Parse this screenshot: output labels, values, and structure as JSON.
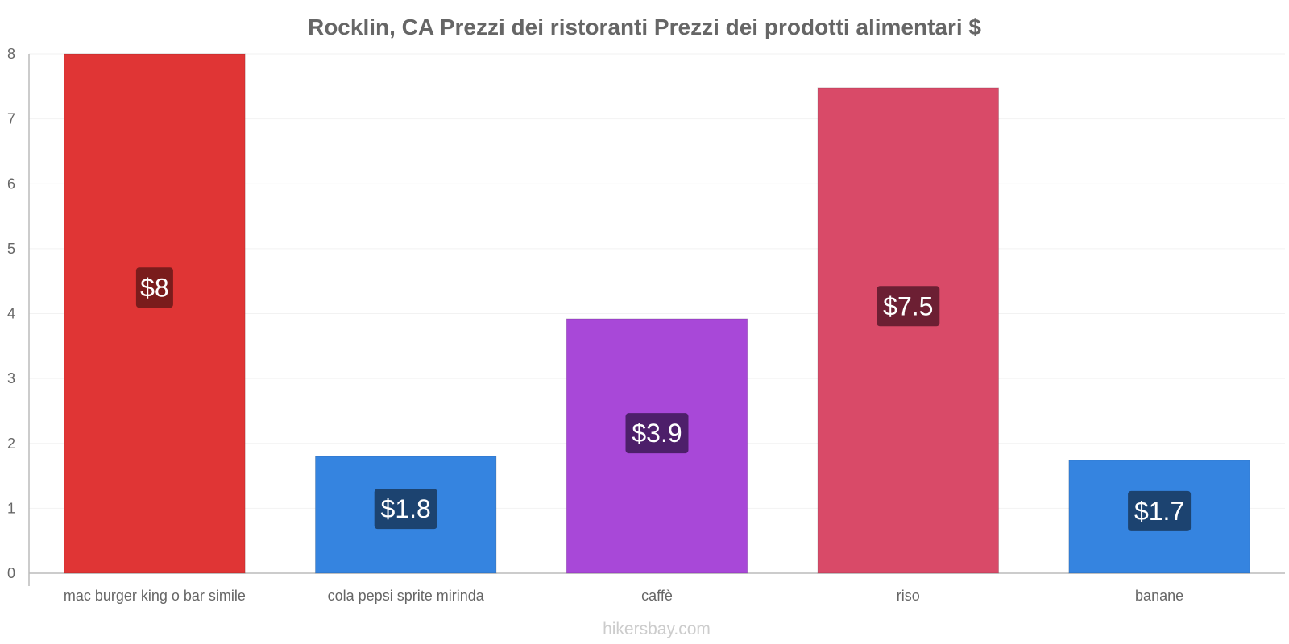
{
  "chart_data": {
    "type": "bar",
    "title": "Rocklin, CA Prezzi dei ristoranti Prezzi dei prodotti alimentari $",
    "xlabel": "",
    "ylabel": "",
    "ylim": [
      0,
      8
    ],
    "yticks": [
      "0",
      "1",
      "2",
      "3",
      "4",
      "5",
      "6",
      "7",
      "8"
    ],
    "categories": [
      "mac burger king o bar simile",
      "cola pepsi sprite mirinda",
      "caffè",
      "riso",
      "banane"
    ],
    "values": [
      8,
      1.8,
      3.92,
      7.48,
      1.74
    ],
    "value_labels": [
      "$8",
      "$1.8",
      "$3.9",
      "$7.5",
      "$1.7"
    ],
    "bar_colors": [
      "#e03535",
      "#3584e0",
      "#a848d8",
      "#d94a68",
      "#3584e0"
    ],
    "label_bg_colors": [
      "#7a1c1c",
      "#1c4370",
      "#4d1f6a",
      "#6c1f33",
      "#1c4370"
    ],
    "grid": true,
    "legend": "none"
  },
  "watermark": "hikersbay.com"
}
